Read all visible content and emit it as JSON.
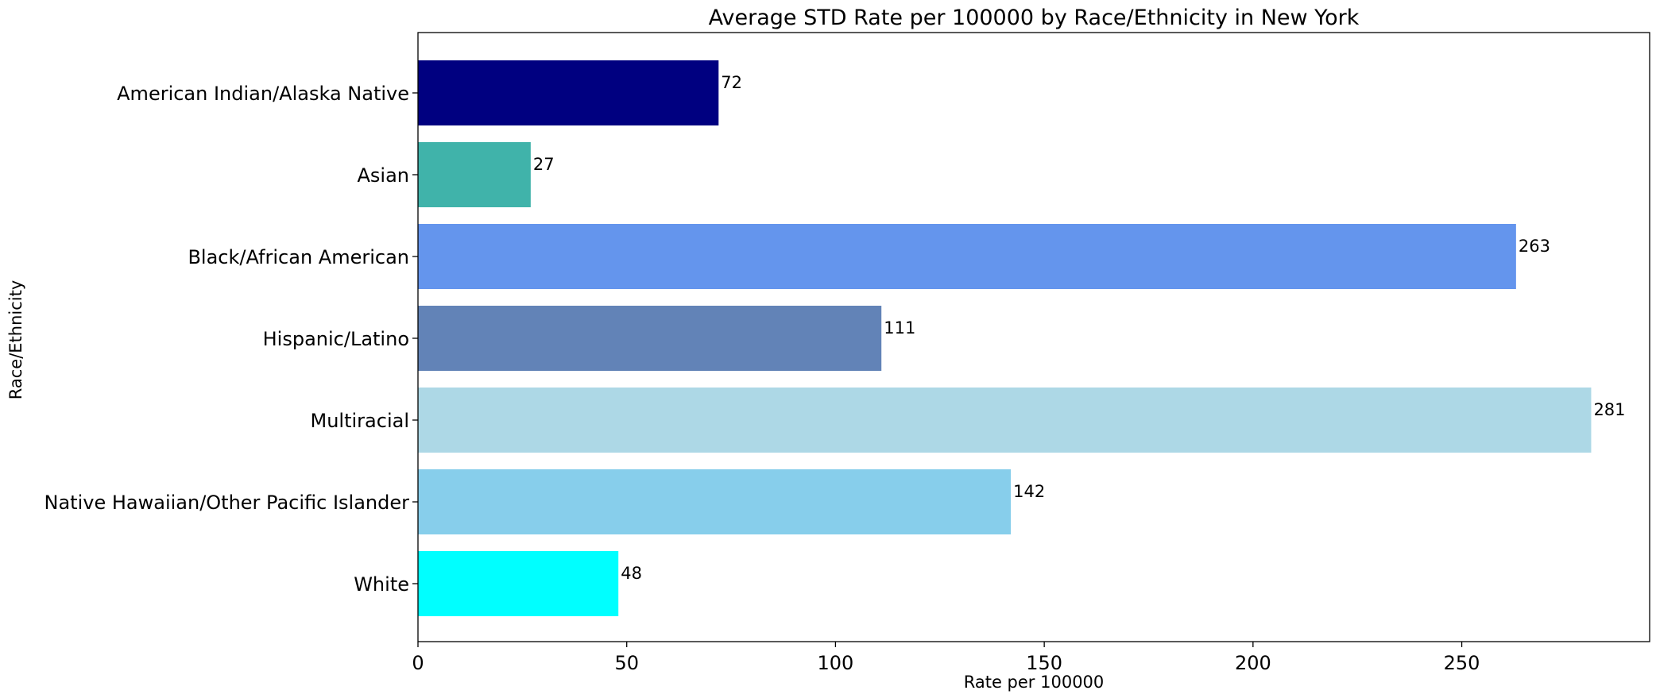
{
  "chart_data": {
    "type": "bar",
    "orientation": "horizontal",
    "title": "Average STD Rate per 100000 by Race/Ethnicity in New York",
    "xlabel": "Rate per 100000",
    "ylabel": "Race/Ethnicity",
    "categories": [
      "American Indian/Alaska Native",
      "Asian",
      "Black/African American",
      "Hispanic/Latino",
      "Multiracial",
      "Native Hawaiian/Other Pacific Islander",
      "White"
    ],
    "values": [
      72,
      27,
      263,
      111,
      281,
      142,
      48
    ],
    "data_labels": [
      "72",
      "27",
      "263",
      "111",
      "281",
      "142",
      "48"
    ],
    "colors": [
      "#000080",
      "#40b3aa",
      "#6495ed",
      "#6283b7",
      "#add8e6",
      "#87ceeb",
      "#00ffff"
    ],
    "xlim": [
      0,
      295
    ],
    "xticks": [
      0,
      50,
      100,
      150,
      200,
      250
    ],
    "xtick_labels": [
      "0",
      "50",
      "100",
      "150",
      "200",
      "250"
    ],
    "grid": false,
    "legend": "none"
  }
}
